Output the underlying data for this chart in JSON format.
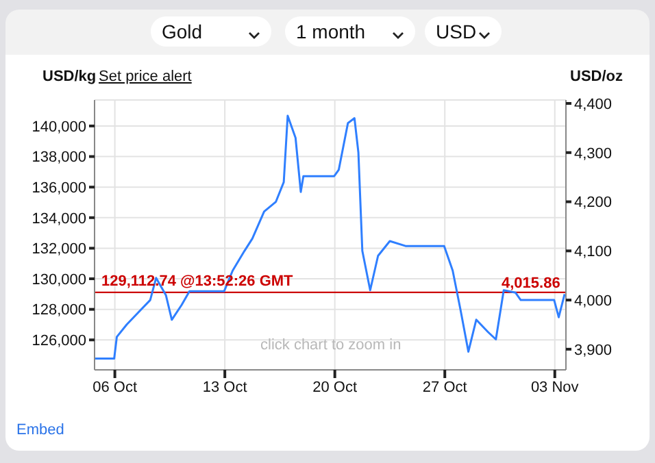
{
  "chart_data": {
    "type": "line",
    "ylabel": "USD/kg",
    "y2label": "USD/oz",
    "annotations": [
      "Gold",
      "1 month",
      "USD",
      "Set price alert",
      "click chart to zoom in",
      "Embed",
      "4,015.86"
    ],
    "x": [
      "--10-04T17:00",
      "--10-05T23:00",
      "--10-06T03:00",
      "--10-06T18:00",
      "--10-07T12:00",
      "--10-08T06:00",
      "--10-08T15:00",
      "--10-09T06:00",
      "--10-09T15:00",
      "--10-10T06:00",
      "--10-10T18:00",
      "--10-12T23:00",
      "--10-13T12:00",
      "--10-14T06:00",
      "--10-14T18:00",
      "--10-15T12:00",
      "--10-16T06:00",
      "--10-16T18:00",
      "--10-17T00:00",
      "--10-17T12:00",
      "--10-17T20:00",
      "--10-18T00:00",
      "--10-19T23:00",
      "--10-20T06:00",
      "--10-20T20:00",
      "--10-21T06:00",
      "--10-21T12:00",
      "--10-21T18:00",
      "--10-22T06:00",
      "--10-22T18:00",
      "--10-23T12:00",
      "--10-24T12:00",
      "--10-26T23:00",
      "--10-27T12:00",
      "--10-28T00:00",
      "--10-28T12:00",
      "--10-29T00:00",
      "--10-29T18:00",
      "--10-30T06:00",
      "--10-30T18:00",
      "--10-31T12:00",
      "--10-31T20:00",
      "--11-02T23:00",
      "--11-03T06:00",
      "--11-03T15:00"
    ],
    "series": [
      {
        "color": "#2f7fff",
        "axis": "y2",
        "values": [
          3881,
          3881,
          3925,
          3950,
          3975,
          4000,
          4045,
          4010,
          3960,
          3990,
          4018,
          4018,
          4060,
          4100,
          4125,
          4180,
          4200,
          4240,
          4375,
          4330,
          4220,
          4252,
          4252,
          4265,
          4360,
          4370,
          4300,
          4100,
          4020,
          4090,
          4120,
          4110,
          4110,
          4060,
          3980,
          3895,
          3960,
          3935,
          3920,
          4020,
          4015,
          4000,
          4000,
          3965,
          4012
        ]
      }
    ],
    "xlim": [
      "--10-04T17:00",
      "--11-03T17:00"
    ],
    "xticks": [
      {
        "value": "--10-06",
        "label": "06 Oct"
      },
      {
        "value": "--10-13",
        "label": "13 Oct"
      },
      {
        "value": "--10-20",
        "label": "20 Oct"
      },
      {
        "value": "--10-27",
        "label": "27 Oct"
      },
      {
        "value": "--11-03",
        "label": "03 Nov"
      }
    ],
    "ylim": [
      124040,
      141700
    ],
    "yticks": [
      {
        "value": 126000,
        "label": "126,000"
      },
      {
        "value": 128000,
        "label": "128,000"
      },
      {
        "value": 130000,
        "label": "130,000"
      },
      {
        "value": 132000,
        "label": "132,000"
      },
      {
        "value": 134000,
        "label": "134,000"
      },
      {
        "value": 136000,
        "label": "136,000"
      },
      {
        "value": 138000,
        "label": "138,000"
      },
      {
        "value": 140000,
        "label": "140,000"
      }
    ],
    "y2lim": [
      3858,
      4407
    ],
    "y2ticks": [
      {
        "value": 3900,
        "label": "3,900"
      },
      {
        "value": 4000,
        "label": "4,000"
      },
      {
        "value": 4100,
        "label": "4,100"
      },
      {
        "value": 4200,
        "label": "4,200"
      },
      {
        "value": 4300,
        "label": "4,300"
      },
      {
        "value": 4400,
        "label": "4,400"
      }
    ],
    "ref_lines": [
      {
        "axis": "y",
        "value": 129112.74,
        "label": "129,112.74 @13:52:26 GMT",
        "color": "#cc0000"
      }
    ],
    "grid": true,
    "marker": "none",
    "line_style": "solid"
  }
}
